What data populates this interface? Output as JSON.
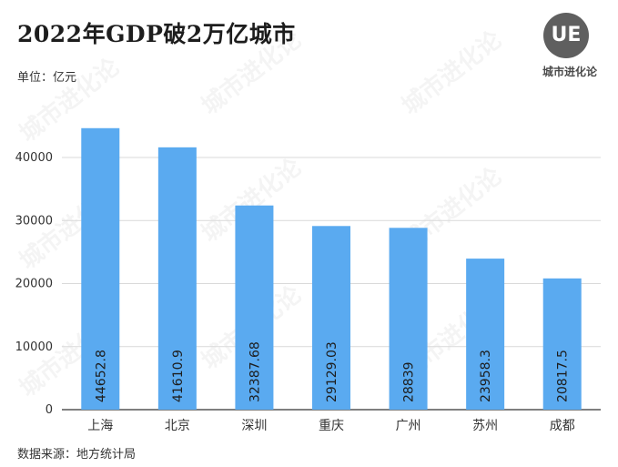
{
  "title": "2022年GDP破2万亿城市",
  "unit_label": "单位：亿元",
  "source_label": "数据来源：地方统计局",
  "logo": {
    "mark": "UE",
    "name": "城市进化论"
  },
  "watermark_text": "城市进化论",
  "colors": {
    "bar": "#5aaaf0",
    "grid": "#d9d9d9",
    "axis": "#333333"
  },
  "chart_data": {
    "type": "bar",
    "categories": [
      "上海",
      "北京",
      "深圳",
      "重庆",
      "广州",
      "苏州",
      "成都"
    ],
    "values": [
      44652.8,
      41610.9,
      32387.68,
      29129.03,
      28839,
      23958.3,
      20817.5
    ],
    "value_labels": [
      "44652.8",
      "41610.9",
      "32387.68",
      "29129.03",
      "28839",
      "23958.3",
      "20817.5"
    ],
    "title": "",
    "xlabel": "",
    "ylabel": "",
    "ylim": [
      0,
      50000
    ],
    "yticks": [
      0,
      10000,
      20000,
      30000,
      40000
    ],
    "grid": true,
    "legend": "none"
  }
}
